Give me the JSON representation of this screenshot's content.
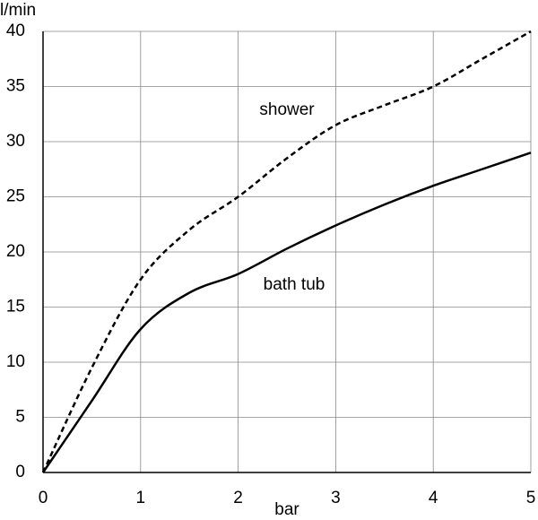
{
  "chart_data": {
    "type": "line",
    "x_label": "bar",
    "y_label": "l/min",
    "x": [
      0,
      0.5,
      1,
      1.5,
      2,
      2.5,
      3,
      3.5,
      4,
      4.5,
      5
    ],
    "series": [
      {
        "name": "shower",
        "color": "#000000",
        "dashed": true,
        "values": [
          0,
          9.5,
          17.5,
          22,
          25,
          28.5,
          31.5,
          33.3,
          35,
          37.5,
          40
        ]
      },
      {
        "name": "bath tub",
        "color": "#000000",
        "dashed": false,
        "values": [
          0,
          6.5,
          13,
          16.3,
          18,
          20.3,
          22.4,
          24.3,
          26,
          27.5,
          29
        ]
      }
    ],
    "xlim": [
      0,
      5
    ],
    "xticks": [
      0,
      1,
      2,
      3,
      4,
      5
    ],
    "ylim": [
      0,
      40
    ],
    "yticks": [
      0,
      5,
      10,
      15,
      20,
      25,
      30,
      35,
      40
    ],
    "grid": true
  }
}
